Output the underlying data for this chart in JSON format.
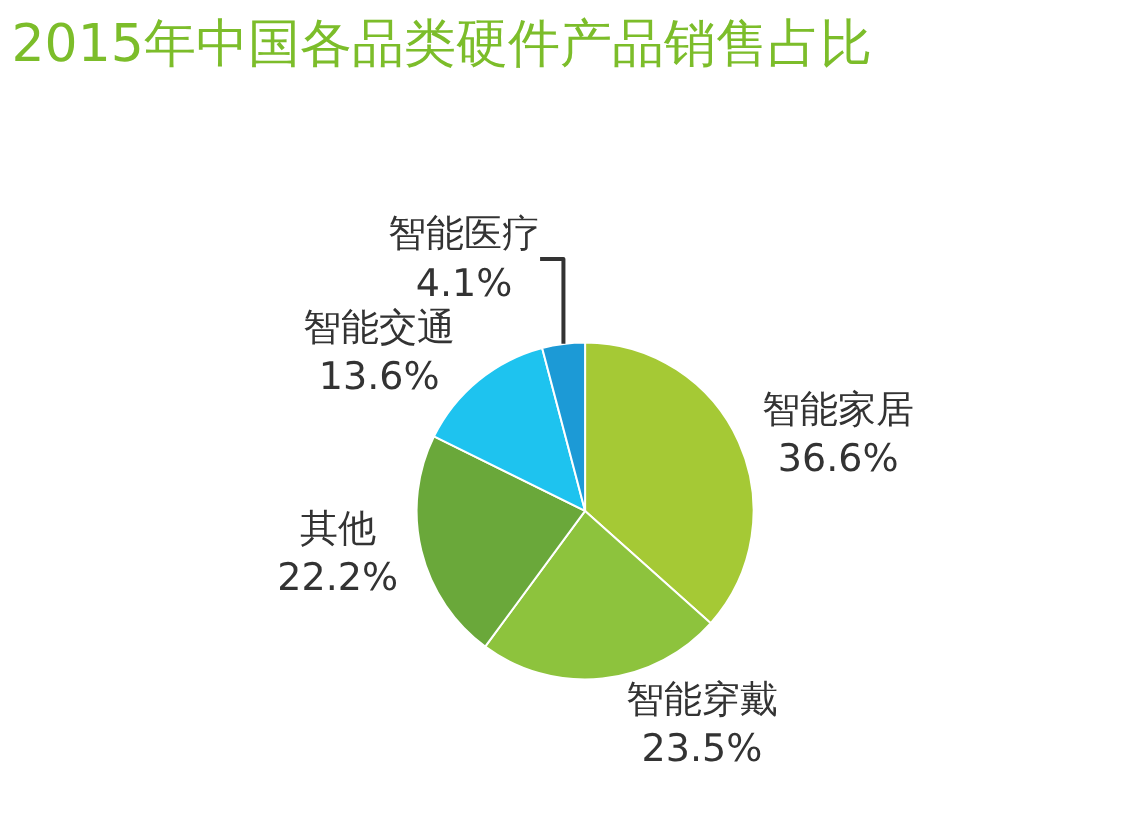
{
  "chart_data": {
    "type": "pie",
    "title": "2015年中国各品类硬件产品销售占比",
    "categories": [
      "智能家居",
      "智能穿戴",
      "其他",
      "智能交通",
      "智能医疗"
    ],
    "values": [
      36.6,
      23.5,
      22.2,
      13.6,
      4.1
    ],
    "value_labels": [
      "36.6%",
      "23.5%",
      "22.2%",
      "13.6%",
      "4.1%"
    ],
    "colors": [
      "#a5c935",
      "#8dc33d",
      "#6aa83a",
      "#1ec3ef",
      "#1c9ad6"
    ],
    "legend": false
  }
}
